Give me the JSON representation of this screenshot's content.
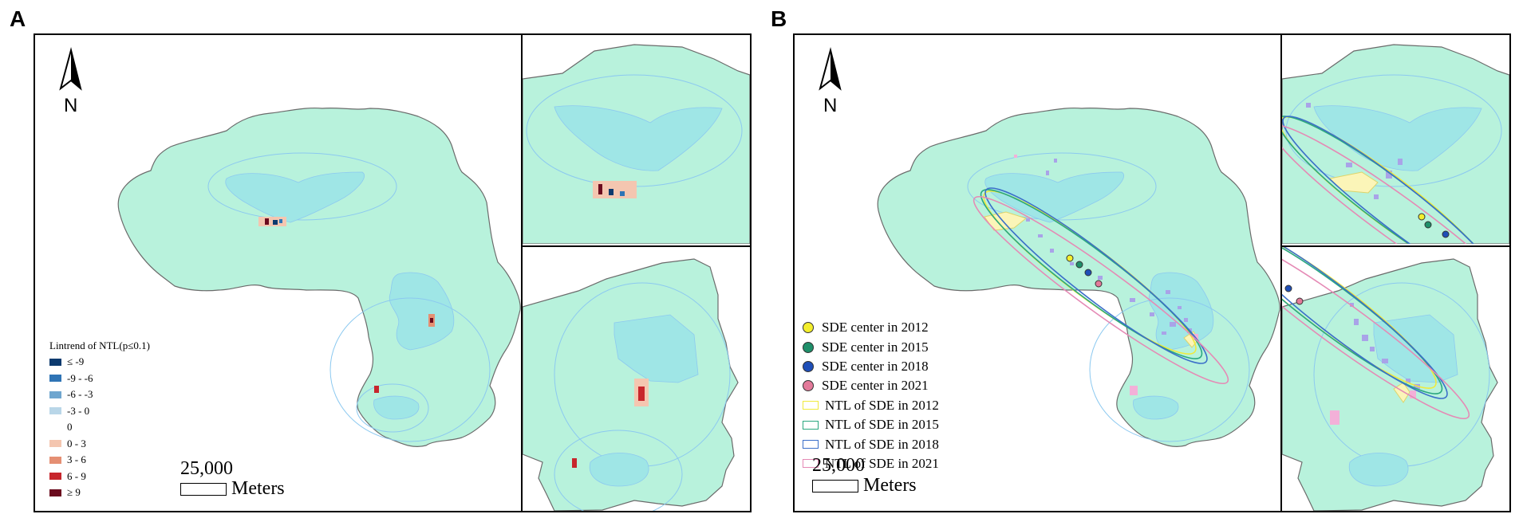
{
  "panels": {
    "a": {
      "letter": "A",
      "north_label": "N",
      "legend_title": "Lintrend of NTL(p≤0.1)",
      "legend_items": [
        {
          "label": "≤ -9",
          "color": "#0c3a6e"
        },
        {
          "label": "-9 - -6",
          "color": "#2f74b5"
        },
        {
          "label": "-6 - -3",
          "color": "#6fa6cf"
        },
        {
          "label": "-3 - 0",
          "color": "#b9d6e8"
        },
        {
          "label": "0",
          "color": ""
        },
        {
          "label": "0 - 3",
          "color": "#f4c6b0"
        },
        {
          "label": "3 - 6",
          "color": "#e58f73"
        },
        {
          "label": "6 - 9",
          "color": "#c7262c"
        },
        {
          "label": "≥ 9",
          "color": "#6b0b1e"
        }
      ],
      "scale_value": "25,000",
      "scale_unit": "Meters"
    },
    "b": {
      "letter": "B",
      "north_label": "N",
      "centers": [
        {
          "label": "SDE center in 2012",
          "color": "#f3ee2c"
        },
        {
          "label": "SDE center in 2015",
          "color": "#1f8f6a"
        },
        {
          "label": "SDE center in 2018",
          "color": "#1f4fb8"
        },
        {
          "label": "SDE center in 2021",
          "color": "#e37a9a"
        }
      ],
      "ellipses": [
        {
          "label": "NTL of SDE in 2012",
          "color": "#f0ea3c"
        },
        {
          "label": "NTL of SDE in 2015",
          "color": "#2aa77f"
        },
        {
          "label": "NTL of SDE in 2018",
          "color": "#3b6fc9"
        },
        {
          "label": "NTL of SDE in 2021",
          "color": "#e58ab5"
        }
      ],
      "scale_value": "25,000",
      "scale_unit": "Meters"
    }
  },
  "colors": {
    "land": "#b8f2dc",
    "water": "#9fe6e6",
    "boundary": "#6b6b6b",
    "contour": "#8cc9f0"
  }
}
